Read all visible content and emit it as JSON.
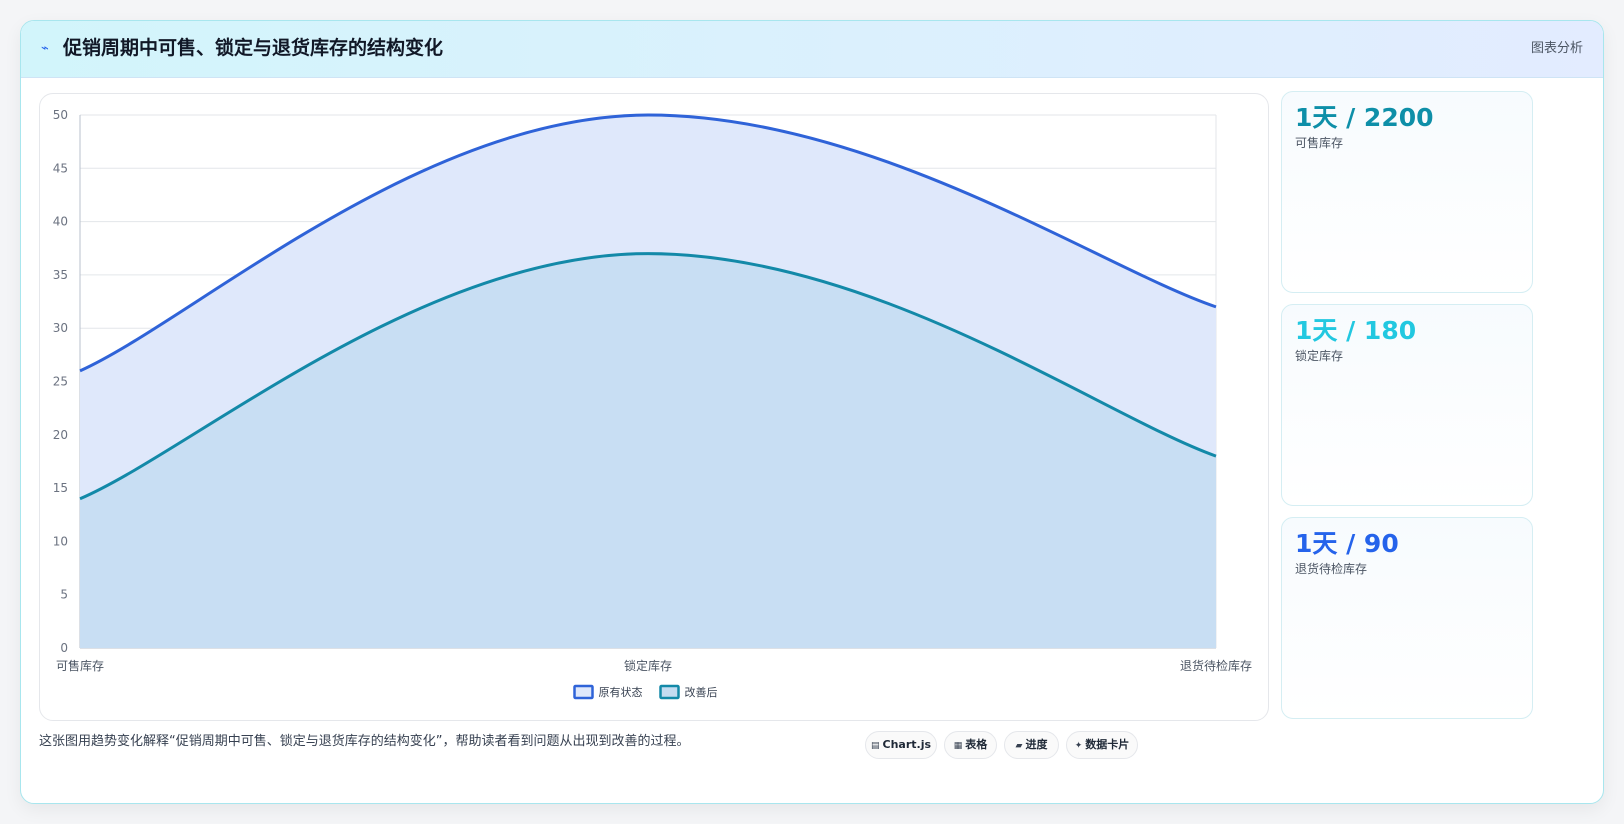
{
  "header": {
    "icon": "lightning-icon",
    "title": "促销周期中可售、锁定与退货库存的结构变化",
    "tag": "图表分析"
  },
  "stats": [
    {
      "value": "1天 / 2200",
      "label": "可售库存",
      "color": "#0e8fa8"
    },
    {
      "value": "1天 / 180",
      "label": "锁定库存",
      "color": "#22c8e0"
    },
    {
      "value": "1天 / 90",
      "label": "退货待检库存",
      "color": "#2563eb"
    }
  ],
  "caption": "这张图用趋势变化解释“促销周期中可售、锁定与退货库存的结构变化”，帮助读者看到问题从出现到改善的过程。",
  "chips": [
    {
      "icon": "chart-icon",
      "label": "Chart.js"
    },
    {
      "icon": "table-icon",
      "label": "表格"
    },
    {
      "icon": "progress-icon",
      "label": "进度"
    },
    {
      "icon": "sparkle-icon",
      "label": "数据卡片"
    }
  ],
  "chart_data": {
    "type": "area",
    "categories": [
      "可售库存",
      "锁定库存",
      "退货待检库存"
    ],
    "series": [
      {
        "name": "原有状态",
        "values": [
          26,
          50,
          32
        ],
        "color": "#2f63d8",
        "fill": "#dfe8fb"
      },
      {
        "name": "改善后",
        "values": [
          14,
          37,
          18
        ],
        "color": "#1389a8",
        "fill": "#c4dcf1"
      }
    ],
    "ylim": [
      0,
      50
    ],
    "yticks": [
      0,
      5,
      10,
      15,
      20,
      25,
      30,
      35,
      40,
      45,
      50
    ],
    "grid": true,
    "legend": "bottom"
  }
}
